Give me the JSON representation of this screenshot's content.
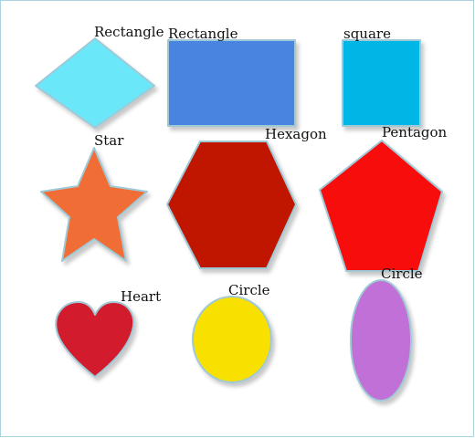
{
  "canvas": {
    "border_color": "#a9d3df",
    "background": "#ffffff"
  },
  "shapes": [
    {
      "id": "diamond",
      "icon": "diamond-shape",
      "label": "Rectangle",
      "color": "#6ae8fa"
    },
    {
      "id": "rectangle",
      "icon": "rectangle-shape",
      "label": "Rectangle",
      "color": "#4a84e0"
    },
    {
      "id": "square",
      "icon": "square-shape",
      "label": "square",
      "color": "#00b6e6"
    },
    {
      "id": "star",
      "icon": "star-shape",
      "label": "Star",
      "color": "#f06d35"
    },
    {
      "id": "hexagon",
      "icon": "hexagon-shape",
      "label": "Hexagon",
      "color": "#c01400"
    },
    {
      "id": "pentagon",
      "icon": "pentagon-shape",
      "label": "Pentagon",
      "color": "#f80a0a"
    },
    {
      "id": "heart",
      "icon": "heart-shape",
      "label": "Heart",
      "color": "#d21f2f"
    },
    {
      "id": "circle",
      "icon": "circle-shape",
      "label": "Circle",
      "color": "#f8e000"
    },
    {
      "id": "ellipse",
      "icon": "ellipse-shape",
      "label": "Circle",
      "color": "#c070d6"
    }
  ],
  "outline_color": "#9fc9d6"
}
